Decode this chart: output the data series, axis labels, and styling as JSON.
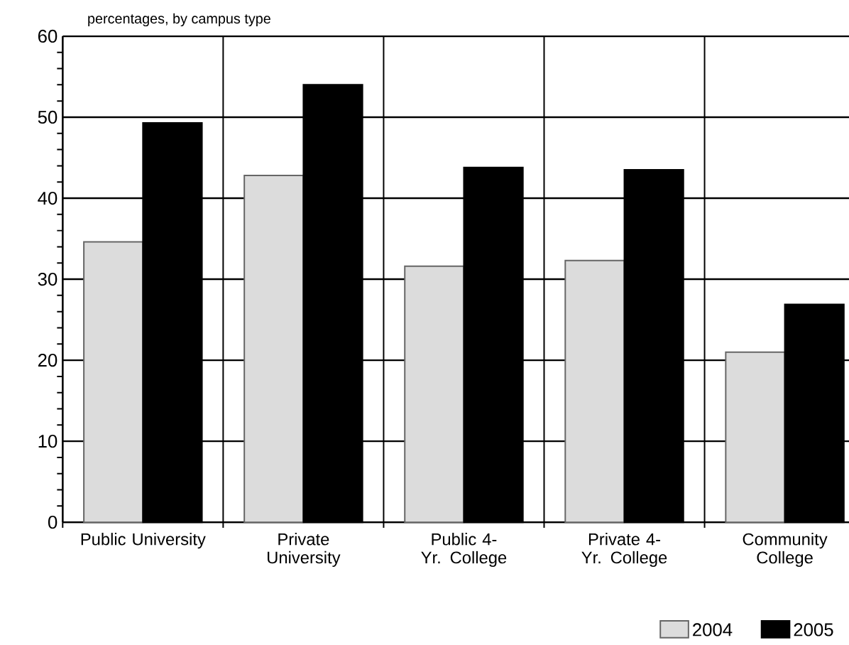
{
  "chart_data": {
    "type": "bar",
    "ylabel": "percentages, by campus type",
    "categories": [
      "Public University",
      "Private University",
      "Public 4-Yr. College",
      "Private 4-Yr. College",
      "Community College"
    ],
    "series": [
      {
        "name": "2004",
        "color": "#dcdcdc",
        "values": [
          34.6,
          42.8,
          31.6,
          32.3,
          21.0
        ]
      },
      {
        "name": "2005",
        "color": "#000000",
        "values": [
          49.3,
          54.0,
          43.8,
          43.5,
          26.9
        ]
      }
    ],
    "ylim": [
      0,
      60
    ],
    "yticks": [
      0,
      10,
      20,
      30,
      40,
      50,
      60
    ],
    "grid": true,
    "legend": "bottom right"
  }
}
